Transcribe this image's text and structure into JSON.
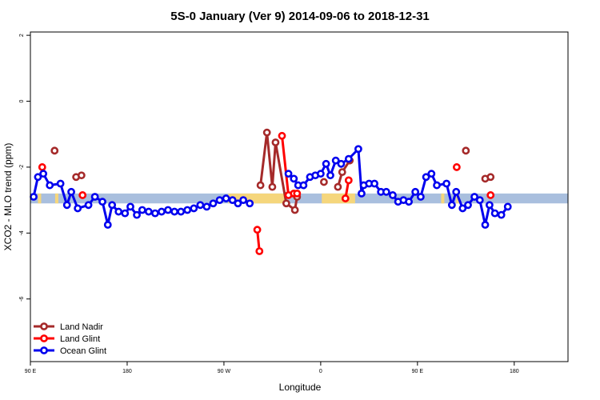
{
  "chart_data": {
    "type": "line",
    "title": "5S-0 January (Ver 9)   2014-09-06 to 2018-12-31",
    "xlabel": "Longitude",
    "ylabel": "XCO2 - MLO trend (ppm)",
    "xlim": [
      90,
      590
    ],
    "ylim": [
      -7.9,
      2.1
    ],
    "x_ticks": [
      {
        "value": 90,
        "label": "90 E"
      },
      {
        "value": 180,
        "label": "180"
      },
      {
        "value": 270,
        "label": "90 W"
      },
      {
        "value": 360,
        "label": "0"
      },
      {
        "value": 450,
        "label": "90 E"
      },
      {
        "value": 540,
        "label": "180"
      }
    ],
    "y_ticks": [
      {
        "value": 2,
        "label": "2"
      },
      {
        "value": 0,
        "label": "0"
      },
      {
        "value": -2,
        "label": "-2"
      },
      {
        "value": -4,
        "label": "-4"
      },
      {
        "value": -6,
        "label": "-6"
      }
    ],
    "grid": false,
    "legend_position": "bottom-left",
    "background_band": {
      "ymin": -3.1,
      "ymax": -2.8,
      "base_color": "#a9bfde",
      "land_color": "#f5d67c",
      "land_ranges": [
        [
          97,
          100
        ],
        [
          113,
          116
        ],
        [
          274,
          327
        ],
        [
          361,
          392
        ],
        [
          472,
          475
        ],
        [
          486,
          489
        ]
      ]
    },
    "series": [
      {
        "name": "Land Nadir",
        "color": "#a52a2a",
        "points": [
          [
            112.5,
            -1.5
          ],
          [
            132.5,
            -2.3
          ],
          [
            137.5,
            -2.25
          ],
          [
            304,
            -2.55
          ],
          [
            310,
            -0.95
          ],
          [
            315,
            -2.6
          ],
          [
            318,
            -1.25
          ],
          [
            328,
            -3.1
          ],
          [
            336,
            -3.3
          ],
          [
            338,
            -2.9
          ],
          [
            363,
            -2.45
          ],
          [
            376,
            -2.6
          ],
          [
            380,
            -2.15
          ],
          [
            387,
            -1.8
          ],
          [
            495,
            -1.5
          ],
          [
            513,
            -2.35
          ],
          [
            518,
            -2.3
          ]
        ]
      },
      {
        "name": "Land Glint",
        "color": "#ff0000",
        "points": [
          [
            101,
            -2.0
          ],
          [
            138.5,
            -2.85
          ],
          [
            301,
            -3.9
          ],
          [
            303,
            -4.55
          ],
          [
            324,
            -1.05
          ],
          [
            330,
            -2.85
          ],
          [
            335,
            -2.8
          ],
          [
            338,
            -2.8
          ],
          [
            383,
            -2.95
          ],
          [
            386,
            -2.4
          ],
          [
            486.5,
            -2.0
          ],
          [
            518,
            -2.85
          ]
        ]
      },
      {
        "name": "Ocean Glint",
        "color": "#0000ee",
        "points": [
          [
            93,
            -2.9
          ],
          [
            97,
            -2.3
          ],
          [
            102,
            -2.2
          ],
          [
            108,
            -2.55
          ],
          [
            118,
            -2.5
          ],
          [
            124,
            -3.15
          ],
          [
            128,
            -2.75
          ],
          [
            134,
            -3.25
          ],
          [
            144,
            -3.15
          ],
          [
            150,
            -2.9
          ],
          [
            157,
            -3.05
          ],
          [
            162,
            -3.75
          ],
          [
            166,
            -3.15
          ],
          [
            172,
            -3.35
          ],
          [
            178,
            -3.4
          ],
          [
            183,
            -3.2
          ],
          [
            189,
            -3.45
          ],
          [
            194,
            -3.3
          ],
          [
            200,
            -3.35
          ],
          [
            206,
            -3.4
          ],
          [
            212,
            -3.35
          ],
          [
            218,
            -3.3
          ],
          [
            224,
            -3.35
          ],
          [
            230,
            -3.35
          ],
          [
            236,
            -3.3
          ],
          [
            242,
            -3.25
          ],
          [
            248,
            -3.15
          ],
          [
            254,
            -3.2
          ],
          [
            260,
            -3.1
          ],
          [
            266,
            -3.0
          ],
          [
            272,
            -2.95
          ],
          [
            278,
            -3.0
          ],
          [
            283,
            -3.1
          ],
          [
            288,
            -3.0
          ],
          [
            294,
            -3.1
          ],
          [
            330,
            -2.2
          ],
          [
            335,
            -2.35
          ],
          [
            339,
            -2.55
          ],
          [
            344,
            -2.55
          ],
          [
            350,
            -2.3
          ],
          [
            355,
            -2.25
          ],
          [
            360,
            -2.2
          ],
          [
            365,
            -1.9
          ],
          [
            369,
            -2.25
          ],
          [
            374,
            -1.8
          ],
          [
            379,
            -1.9
          ],
          [
            386,
            -1.75
          ],
          [
            395,
            -1.45
          ],
          [
            398,
            -2.8
          ],
          [
            400,
            -2.55
          ],
          [
            405,
            -2.5
          ],
          [
            410,
            -2.5
          ],
          [
            416,
            -2.75
          ],
          [
            421,
            -2.75
          ],
          [
            427,
            -2.85
          ],
          [
            432,
            -3.05
          ],
          [
            437,
            -3.0
          ],
          [
            442,
            -3.05
          ],
          [
            448,
            -2.75
          ],
          [
            453,
            -2.9
          ],
          [
            458,
            -2.3
          ],
          [
            463,
            -2.2
          ],
          [
            468,
            -2.55
          ],
          [
            477,
            -2.5
          ],
          [
            482,
            -3.15
          ],
          [
            486,
            -2.75
          ],
          [
            492,
            -3.25
          ],
          [
            497,
            -3.15
          ],
          [
            503,
            -2.9
          ],
          [
            508,
            -3.0
          ],
          [
            513,
            -3.75
          ],
          [
            517,
            -3.15
          ],
          [
            522,
            -3.4
          ],
          [
            528,
            -3.45
          ],
          [
            534,
            -3.2
          ]
        ]
      }
    ]
  }
}
